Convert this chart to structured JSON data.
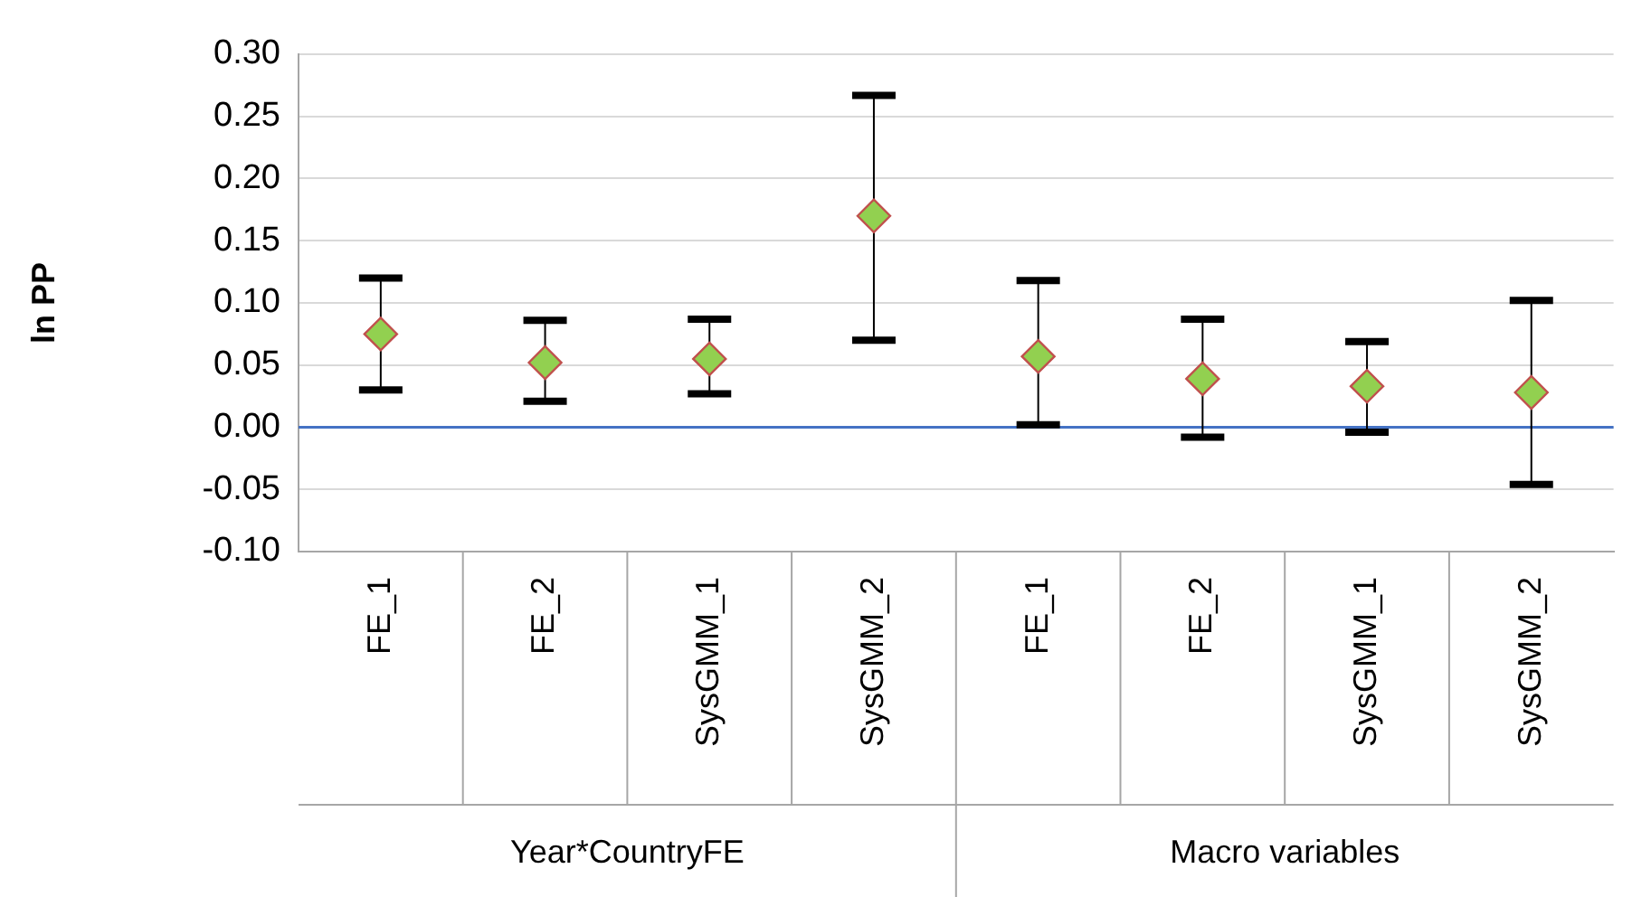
{
  "chart_data": {
    "type": "scatter",
    "ylabel": "ln PP",
    "categories": [
      "FE_1",
      "FE_2",
      "SysGMM_1",
      "SysGMM_2",
      "FE_1",
      "FE_2",
      "SysGMM_1",
      "SysGMM_2"
    ],
    "values": [
      0.075,
      0.052,
      0.055,
      0.17,
      0.057,
      0.039,
      0.033,
      0.028
    ],
    "errors": [
      [
        0.03,
        0.12
      ],
      [
        0.021,
        0.086
      ],
      [
        0.027,
        0.087
      ],
      [
        0.07,
        0.267
      ],
      [
        0.002,
        0.118
      ],
      [
        -0.008,
        0.087
      ],
      [
        -0.004,
        0.069
      ],
      [
        -0.046,
        0.102
      ]
    ],
    "color": "#92d050",
    "marker": "diamond",
    "ylim": [
      -0.1,
      0.3
    ],
    "yticks": [
      {
        "value": -0.1,
        "label": "-0.10"
      },
      {
        "value": -0.05,
        "label": "-0.05"
      },
      {
        "value": 0,
        "label": "0.00"
      },
      {
        "value": 0.05,
        "label": "0.05"
      },
      {
        "value": 0.1,
        "label": "0.10"
      },
      {
        "value": 0.15,
        "label": "0.15"
      },
      {
        "value": 0.2,
        "label": "0.20"
      },
      {
        "value": 0.25,
        "label": "0.25"
      },
      {
        "value": 0.3,
        "label": "0.30"
      }
    ],
    "grid": "y",
    "legend": false,
    "ref_lines": [
      {
        "axis": "y",
        "value": 0,
        "color": "#4472c4"
      }
    ],
    "annotations": [
      "Year*CountryFE",
      "Macro variables"
    ]
  }
}
